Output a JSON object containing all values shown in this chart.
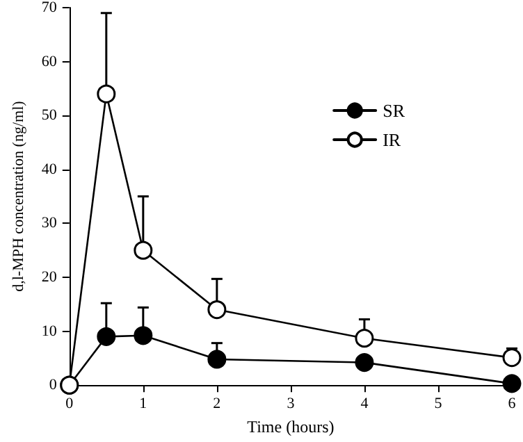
{
  "chart_data": {
    "type": "line",
    "xlabel": "Time (hours)",
    "ylabel": "d,l-MPH concentration (ng/ml)",
    "x": [
      0,
      0.5,
      1,
      2,
      4,
      6
    ],
    "series": [
      {
        "name": "SR",
        "color": "#000000",
        "values": [
          0,
          9,
          9.2,
          4.8,
          4.2,
          0.3
        ],
        "errors": [
          null,
          [
            9,
            15.2
          ],
          [
            9.2,
            14.4
          ],
          [
            4.8,
            7.8
          ],
          null,
          null
        ]
      },
      {
        "name": "IR",
        "color": "#000000",
        "values": [
          0,
          54,
          25,
          14,
          8.7,
          5.1
        ],
        "errors": [
          null,
          [
            54,
            69
          ],
          [
            25,
            35
          ],
          [
            14,
            19.7
          ],
          [
            8.7,
            12.2
          ],
          [
            5.1,
            6.8
          ]
        ]
      }
    ],
    "xlim": [
      0,
      6
    ],
    "xticks": [
      0,
      1,
      2,
      3,
      4,
      5,
      6
    ],
    "ylim": [
      0,
      70
    ],
    "yticks": [
      0,
      10,
      20,
      30,
      40,
      50,
      60,
      70
    ],
    "marker": "circle",
    "line_style": "solid",
    "legend": "top right",
    "grid": false
  }
}
